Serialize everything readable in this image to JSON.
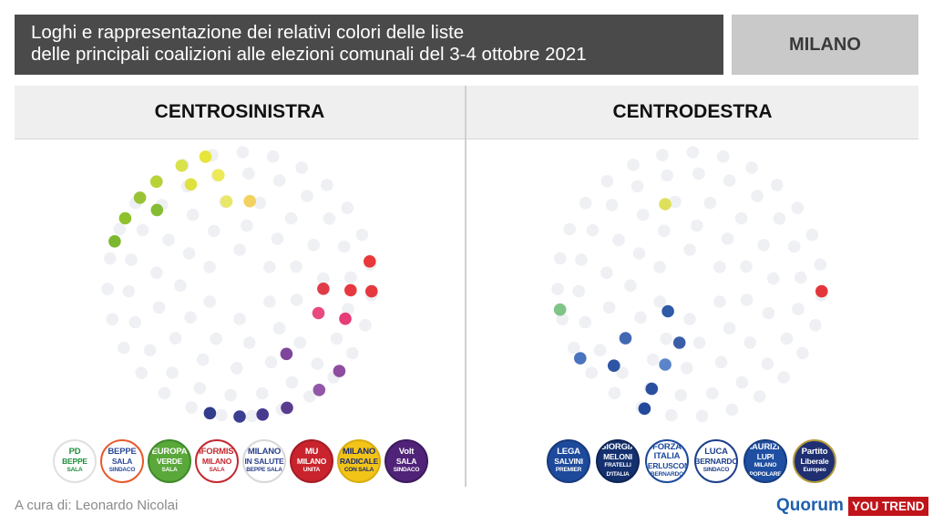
{
  "header": {
    "title_line1": "Loghi e rappresentazione dei relativi colori delle liste",
    "title_line2": "delle principali coalizioni alle elezioni comunali del 3-4 ottobre 2021",
    "city": "MILANO"
  },
  "panels": {
    "left_title": "CENTROSINISTRA",
    "right_title": "CENTRODESTRA"
  },
  "footer": {
    "credit": "A cura di: Leonardo Nicolai",
    "brand1": "Quorum",
    "brand2": "YOU TREND"
  },
  "colors": {
    "header_bg": "#4a4a4a",
    "city_bg": "#c9c9c9",
    "panel_head_bg": "#efefef",
    "pale_dot": "#eef0f3"
  },
  "chart_data": [
    {
      "type": "dot-wheel",
      "title": "CENTROSINISTRA",
      "highlighted": [
        {
          "color": "#7cb82f",
          "ring": 5,
          "angle": 289
        },
        {
          "color": "#8ec12c",
          "ring": 5,
          "angle": 300
        },
        {
          "color": "#99c335",
          "ring": 5,
          "angle": 311
        },
        {
          "color": "#b6d236",
          "ring": 5,
          "angle": 321
        },
        {
          "color": "#d8e24a",
          "ring": 5,
          "angle": 334
        },
        {
          "color": "#e7e53a",
          "ring": 5,
          "angle": 345
        },
        {
          "color": "#84bd32",
          "ring": 4,
          "angle": 312
        },
        {
          "color": "#dfe13f",
          "ring": 4,
          "angle": 334
        },
        {
          "color": "#ecea57",
          "ring": 4,
          "angle": 349
        },
        {
          "color": "#e9e76a",
          "ring": 3,
          "angle": 351
        },
        {
          "color": "#f2d160",
          "ring": 3,
          "angle": 7
        },
        {
          "color": "#e8383a",
          "ring": 5,
          "angle": 80
        },
        {
          "color": "#e03c48",
          "ring": 3,
          "angle": 93
        },
        {
          "color": "#e6393f",
          "ring": 4,
          "angle": 93
        },
        {
          "color": "#e6393f",
          "ring": 5,
          "angle": 93
        },
        {
          "color": "#e84a80",
          "ring": 3,
          "angle": 110
        },
        {
          "color": "#e63c77",
          "ring": 4,
          "angle": 108
        },
        {
          "color": "#8e4d9f",
          "ring": 5,
          "angle": 131
        },
        {
          "color": "#9257a8",
          "ring": 5,
          "angle": 143
        },
        {
          "color": "#7f459b",
          "ring": 3,
          "angle": 146
        },
        {
          "color": "#5a3c8f",
          "ring": 5,
          "angle": 159
        },
        {
          "color": "#463a90",
          "ring": 5,
          "angle": 170
        },
        {
          "color": "#3b3f92",
          "ring": 5,
          "angle": 180
        },
        {
          "color": "#333b8b",
          "ring": 5,
          "angle": 193
        }
      ]
    },
    {
      "type": "dot-wheel",
      "title": "CENTRODESTRA",
      "highlighted": [
        {
          "color": "#dfe05a",
          "ring": 3,
          "angle": 343
        },
        {
          "color": "#7fc586",
          "ring": 5,
          "angle": 259
        },
        {
          "color": "#e3363c",
          "ring": 5,
          "angle": 93
        },
        {
          "color": "#4a74c0",
          "ring": 5,
          "angle": 236
        },
        {
          "color": "#4268b4",
          "ring": 3,
          "angle": 230
        },
        {
          "color": "#5c84c9",
          "ring": 3,
          "angle": 197
        },
        {
          "color": "#3a5da8",
          "ring": 2,
          "angle": 190
        },
        {
          "color": "#2e54a4",
          "ring": 4,
          "angle": 223
        },
        {
          "color": "#2e5aa8",
          "ring": 1,
          "angle": 219
        },
        {
          "color": "#2a4f9f",
          "ring": 4,
          "angle": 200
        },
        {
          "color": "#24489a",
          "ring": 5,
          "angle": 200
        }
      ]
    }
  ],
  "logos_left": [
    {
      "name": "pd",
      "line1": "PD",
      "line2": "BEPPE",
      "line3": "SALA",
      "bg": "#ffffff",
      "fg": "#1d8f3a",
      "border": "#e0e0e0"
    },
    {
      "name": "beppe-sala-sindaco",
      "line1": "BEPPE",
      "line2": "SALA",
      "line3": "SINDACO",
      "bg": "#ffffff",
      "fg": "#2b4a9a",
      "border": "#e85a2c"
    },
    {
      "name": "europa-verde",
      "line1": "EUROPA",
      "line2": "VERDE",
      "line3": "SALA",
      "bg": "#5aa83a",
      "fg": "#ffffff",
      "border": "#3f8a2a"
    },
    {
      "name": "i-riformisti",
      "line1": "RIFORMISTI",
      "line2": "MILANO",
      "line3": "SALA",
      "bg": "#ffffff",
      "fg": "#c5282f",
      "border": "#c5282f"
    },
    {
      "name": "milano-in-salute",
      "line1": "MILANO",
      "line2": "IN SALUTE",
      "line3": "BEPPE SALA",
      "bg": "#ffffff",
      "fg": "#2a3f8c",
      "border": "#d8d8d8"
    },
    {
      "name": "milano-unita",
      "line1": "MU",
      "line2": "MILANO",
      "line3": "UNITA",
      "bg": "#c9232d",
      "fg": "#ffffff",
      "border": "#a51c25"
    },
    {
      "name": "milano-radicale",
      "line1": "MILANO",
      "line2": "RADICALE",
      "line3": "CON SALA",
      "bg": "#f2c418",
      "fg": "#1c2a6e",
      "border": "#d9ad10"
    },
    {
      "name": "volt",
      "line1": "Volt",
      "line2": "SALA",
      "line3": "SINDACO",
      "bg": "#502379",
      "fg": "#ffffff",
      "border": "#3d1a5e"
    }
  ],
  "logos_right": [
    {
      "name": "lega",
      "line1": "LEGA",
      "line2": "SALVINI",
      "line3": "PREMIER",
      "bg": "#1e4a9c",
      "fg": "#ffffff",
      "border": "#163a7e"
    },
    {
      "name": "fratelli-d-italia",
      "line1": "GIORGIA",
      "line2": "MELONI",
      "line3": "FRATELLI D'ITALIA",
      "bg": "#14306e",
      "fg": "#ffffff",
      "border": "#0e2454"
    },
    {
      "name": "forza-italia",
      "line1": "FORZA ITALIA",
      "line2": "BERLUSCONI",
      "line3": "BERNARDO",
      "bg": "#ffffff",
      "fg": "#1d4a9c",
      "border": "#1d4a9c"
    },
    {
      "name": "bernardo-sindaco",
      "line1": "LUCA",
      "line2": "BERNARDO",
      "line3": "SINDACO",
      "bg": "#ffffff",
      "fg": "#1d3f8c",
      "border": "#1d3f8c"
    },
    {
      "name": "milano-popolare",
      "line1": "MAURIZIO",
      "line2": "LUPI",
      "line3": "MILANO POPOLARE",
      "bg": "#1f4fa2",
      "fg": "#ffffff",
      "border": "#163d80"
    },
    {
      "name": "partito-liberale-europeo",
      "line1": "Partito",
      "line2": "Liberale",
      "line3": "Europeo",
      "bg": "#1f2f72",
      "fg": "#ffffff",
      "border": "#b39a3a"
    }
  ]
}
